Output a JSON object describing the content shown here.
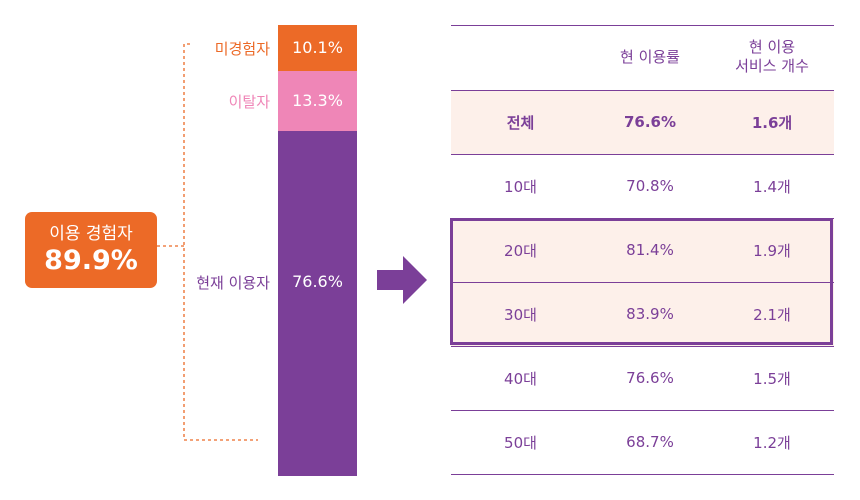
{
  "left_panel": {
    "experienced_label": "이용 경험자",
    "experienced_value": "89.9%",
    "segments": [
      {
        "label": "미경험자",
        "value_text": "10.1%",
        "value": 10.1,
        "color": "#ec6a27",
        "label_color": "#ec6a27"
      },
      {
        "label": "이탈자",
        "value_text": "13.3%",
        "value": 13.3,
        "color": "#ef86b7",
        "label_color": "#ef86b7"
      },
      {
        "label": "현재 이용자",
        "value_text": "76.6%",
        "value": 76.6,
        "color": "#7b3f98",
        "label_color": "#7b3f98"
      }
    ]
  },
  "table": {
    "headers": [
      "",
      "현 이용률",
      "현 이용\n서비스 개수"
    ],
    "rows": [
      {
        "group": "전체",
        "rate": "76.6%",
        "count": "1.6개",
        "bold": true,
        "bg": "#fdf0ea"
      },
      {
        "group": "10대",
        "rate": "70.8%",
        "count": "1.4개",
        "bold": false,
        "bg": "#ffffff"
      },
      {
        "group": "20대",
        "rate": "81.4%",
        "count": "1.9개",
        "bold": false,
        "bg": "#fdf0ea"
      },
      {
        "group": "30대",
        "rate": "83.9%",
        "count": "2.1개",
        "bold": false,
        "bg": "#fdf0ea"
      },
      {
        "group": "40대",
        "rate": "76.6%",
        "count": "1.5개",
        "bold": false,
        "bg": "#ffffff"
      },
      {
        "group": "50대",
        "rate": "68.7%",
        "count": "1.2개",
        "bold": false,
        "bg": "#ffffff"
      }
    ],
    "highlighted_groups": [
      "20대",
      "30대"
    ],
    "accent_color": "#7b3f98"
  },
  "chart_data": [
    {
      "type": "bar",
      "categories": [
        "미경험자",
        "이탈자",
        "현재 이용자"
      ],
      "values": [
        10.1,
        13.3,
        76.6
      ],
      "stacked": true,
      "annotations": [
        "이용 경험자 89.9%"
      ]
    },
    {
      "type": "table",
      "columns": [
        "",
        "현 이용률",
        "현 이용 서비스 개수"
      ],
      "rows": [
        [
          "전체",
          "76.6%",
          "1.6개"
        ],
        [
          "10대",
          "70.8%",
          "1.4개"
        ],
        [
          "20대",
          "81.4%",
          "1.9개"
        ],
        [
          "30대",
          "83.9%",
          "2.1개"
        ],
        [
          "40대",
          "76.6%",
          "1.5개"
        ],
        [
          "50대",
          "68.7%",
          "1.2개"
        ]
      ]
    }
  ]
}
